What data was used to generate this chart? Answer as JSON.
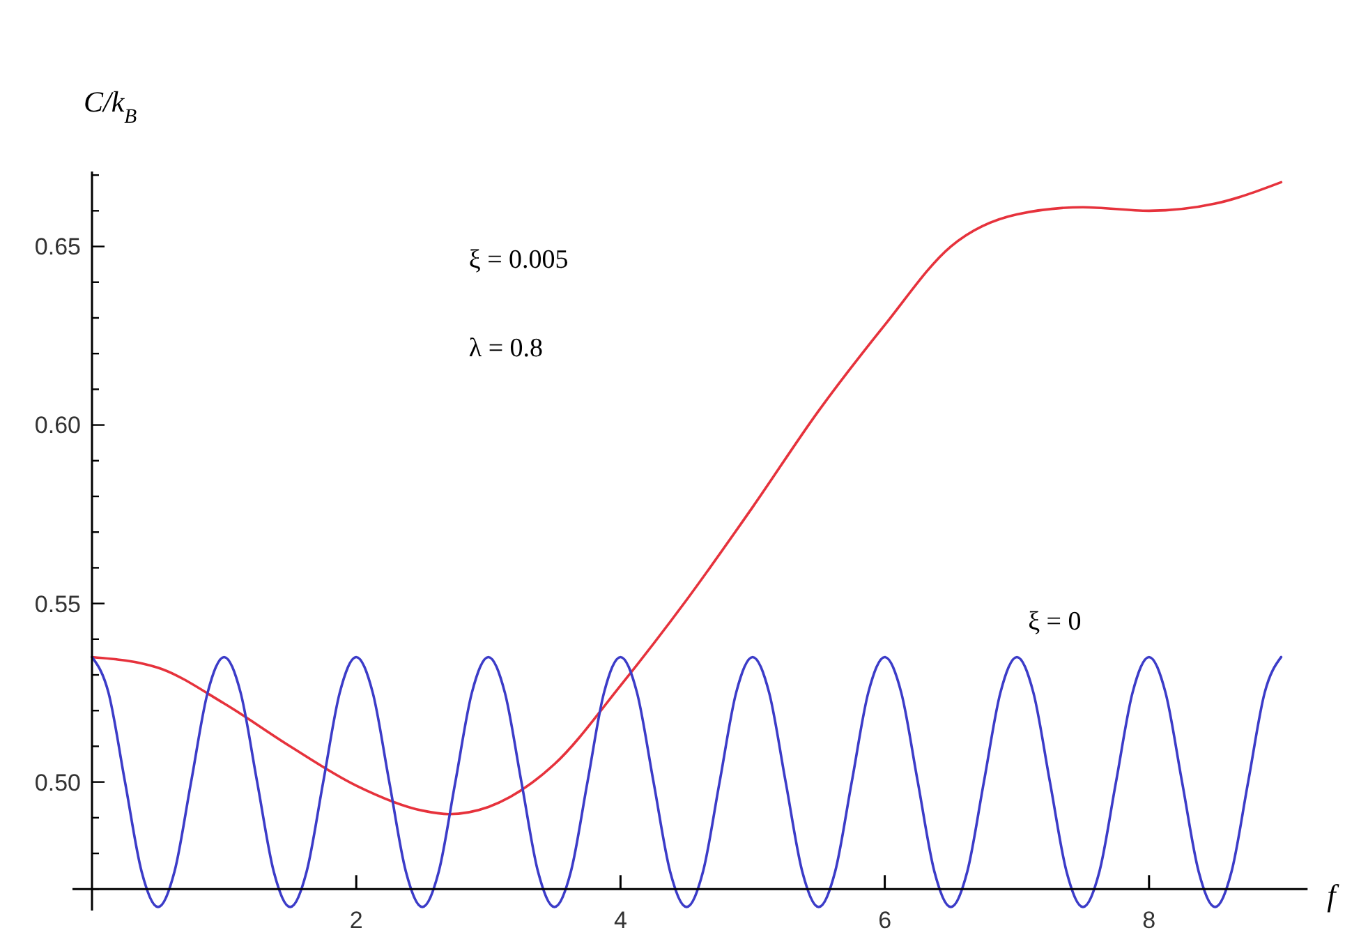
{
  "chart_data": {
    "type": "line",
    "xlabel": "f",
    "ylabel": "C/k$_{B}$",
    "xlim": [
      0,
      9.2
    ],
    "ylim": [
      0.464,
      0.671
    ],
    "xticks": [
      2,
      4,
      6,
      8
    ],
    "yticks": [
      {
        "value": 0.47,
        "label": null
      },
      {
        "value": 0.48,
        "label": null
      },
      {
        "value": 0.49,
        "label": null
      },
      {
        "value": 0.5,
        "label": "0.50"
      },
      {
        "value": 0.51,
        "label": null
      },
      {
        "value": 0.52,
        "label": null
      },
      {
        "value": 0.53,
        "label": null
      },
      {
        "value": 0.54,
        "label": null
      },
      0.55,
      {
        "value": 0.56,
        "label": null
      },
      {
        "value": 0.57,
        "label": null
      },
      {
        "value": 0.58,
        "label": null
      },
      {
        "value": 0.59,
        "label": null
      },
      {
        "value": 0.6,
        "label": "0.60"
      },
      {
        "value": 0.61,
        "label": null
      },
      {
        "value": 0.62,
        "label": null
      },
      {
        "value": 0.63,
        "label": null
      },
      {
        "value": 0.64,
        "label": null
      },
      0.65,
      {
        "value": 0.66,
        "label": null
      },
      {
        "value": 0.67,
        "label": null
      }
    ],
    "annotations": [
      "ξ = 0.005",
      "λ = 0.8",
      "ξ = 0"
    ],
    "series": [
      {
        "color": "#e6323c",
        "x": [
          0,
          0.5,
          1,
          1.5,
          2,
          2.5,
          2.7,
          3,
          3.5,
          4,
          4.5,
          5,
          5.5,
          6,
          6.5,
          7,
          7.5,
          8,
          8.5,
          9
        ],
        "values": [
          0.535,
          0.532,
          0.522,
          0.51,
          0.499,
          0.492,
          0.491,
          0.493,
          0.505,
          0.527,
          0.551,
          0.577,
          0.604,
          0.628,
          0.65,
          0.659,
          0.661,
          0.66,
          0.662,
          0.668
        ]
      },
      {
        "color": "#3c3cc8",
        "x": [
          0,
          0.125,
          0.25,
          0.375,
          0.5,
          0.625,
          0.75,
          0.875,
          1,
          1.125,
          1.25,
          1.375,
          1.5,
          1.625,
          1.75,
          1.875,
          2,
          2.125,
          2.25,
          2.375,
          2.5,
          2.625,
          2.75,
          2.875,
          3,
          3.125,
          3.25,
          3.375,
          3.5,
          3.625,
          3.75,
          3.875,
          4,
          4.125,
          4.25,
          4.375,
          4.5,
          4.625,
          4.75,
          4.875,
          5,
          5.125,
          5.25,
          5.375,
          5.5,
          5.625,
          5.75,
          5.875,
          6,
          6.125,
          6.25,
          6.375,
          6.5,
          6.625,
          6.75,
          6.875,
          7,
          7.125,
          7.25,
          7.375,
          7.5,
          7.625,
          7.75,
          7.875,
          8,
          8.125,
          8.25,
          8.375,
          8.5,
          8.625,
          8.75,
          8.875,
          9
        ],
        "values": [
          0.535,
          0.525,
          0.5,
          0.475,
          0.465,
          0.475,
          0.5,
          0.525,
          0.535,
          0.525,
          0.5,
          0.475,
          0.465,
          0.475,
          0.5,
          0.525,
          0.535,
          0.525,
          0.5,
          0.475,
          0.465,
          0.475,
          0.5,
          0.525,
          0.535,
          0.525,
          0.5,
          0.475,
          0.465,
          0.475,
          0.5,
          0.525,
          0.535,
          0.525,
          0.5,
          0.475,
          0.465,
          0.475,
          0.5,
          0.525,
          0.535,
          0.525,
          0.5,
          0.475,
          0.465,
          0.475,
          0.5,
          0.525,
          0.535,
          0.525,
          0.5,
          0.475,
          0.465,
          0.475,
          0.5,
          0.525,
          0.535,
          0.525,
          0.5,
          0.475,
          0.465,
          0.475,
          0.5,
          0.525,
          0.535,
          0.525,
          0.5,
          0.475,
          0.465,
          0.475,
          0.5,
          0.525,
          0.535
        ]
      }
    ]
  }
}
